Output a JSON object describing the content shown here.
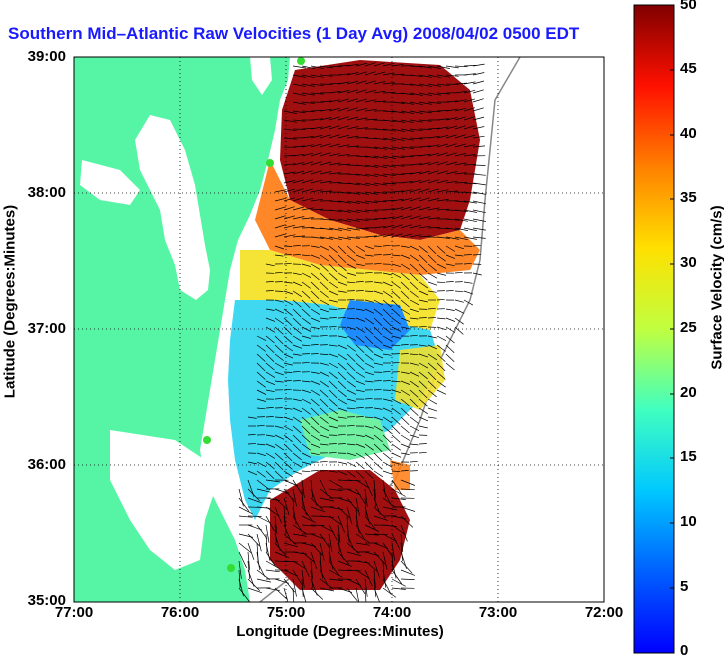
{
  "title": "Southern Mid–Atlantic Raw Velocities (1 Day Avg) 2008/04/02 0500 EDT",
  "xlabel": "Longitude (Degrees:Minutes)",
  "ylabel": "Latitude (Degrees:Minutes)",
  "colorbar": {
    "label": "Surface Velocity (cm/s)",
    "ticks": [
      "0",
      "5",
      "10",
      "15",
      "20",
      "25",
      "30",
      "35",
      "40",
      "45",
      "50"
    ],
    "range": [
      0,
      50
    ]
  },
  "axes": {
    "xticks": [
      "77:00",
      "76:00",
      "75:00",
      "74:00",
      "73:00",
      "72:00"
    ],
    "yticks": [
      "39:00",
      "38:00",
      "37:00",
      "36:00",
      "35:00"
    ],
    "xlim": [
      -77,
      -72
    ],
    "ylim": [
      35,
      39
    ],
    "grid": "dotted"
  },
  "colors": {
    "land": "#55f5a5",
    "ocean": "#ffffff",
    "title": "#1a1aff",
    "site_marker": "#33dd33"
  },
  "map": {
    "projection": "lat-lon",
    "sites": 4,
    "regions": [
      {
        "name": "north",
        "speed_range_cm_s": [
          40,
          50
        ]
      },
      {
        "name": "center",
        "speed_range_cm_s": [
          5,
          20
        ]
      },
      {
        "name": "south",
        "speed_range_cm_s": [
          40,
          50
        ]
      }
    ]
  }
}
